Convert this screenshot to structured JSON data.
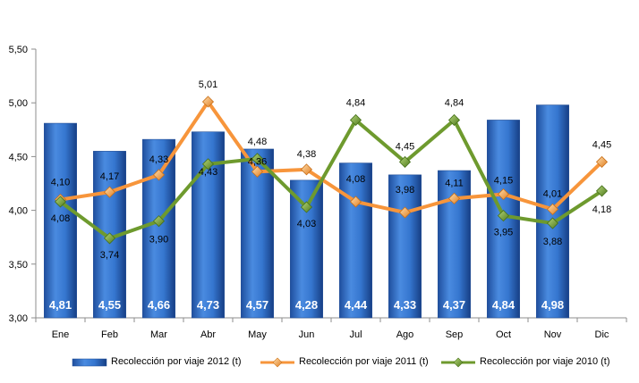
{
  "chart_data": {
    "type": "bar",
    "categories": [
      "Ene",
      "Feb",
      "Mar",
      "Abr",
      "May",
      "Jun",
      "Jul",
      "Ago",
      "Sep",
      "Oct",
      "Nov",
      "Dic"
    ],
    "ylim": [
      3.0,
      5.5
    ],
    "yticks": [
      "3,00",
      "3,50",
      "4,00",
      "4,50",
      "5,00",
      "5,50"
    ],
    "grid": false,
    "legend_position": "bottom",
    "series": [
      {
        "name": "Recolección por viaje 2012 (t)",
        "kind": "bar",
        "color": "#2f6fc9",
        "values": [
          4.81,
          4.55,
          4.66,
          4.73,
          4.57,
          4.28,
          4.44,
          4.33,
          4.37,
          4.84,
          4.98,
          null
        ],
        "labels": [
          "4,81",
          "4,55",
          "4,66",
          "4,73",
          "4,57",
          "4,28",
          "4,44",
          "4,33",
          "4,37",
          "4,84",
          "4,98",
          ""
        ]
      },
      {
        "name": "Recolección por viaje 2011 (t)",
        "kind": "line",
        "color": "#f7953b",
        "values": [
          4.1,
          4.17,
          4.33,
          5.01,
          4.36,
          4.38,
          4.08,
          3.98,
          4.11,
          4.15,
          4.01,
          4.45
        ],
        "labels": [
          "4,10",
          "4,17",
          "4,33",
          "5,01",
          "4,36",
          "4,38",
          "4,08",
          "3,98",
          "4,11",
          "4,15",
          "4,01",
          "4,45"
        ]
      },
      {
        "name": "Recolección por viaje 2010 (t)",
        "kind": "line",
        "color": "#6e9a2e",
        "values": [
          4.08,
          3.74,
          3.9,
          4.43,
          4.48,
          4.03,
          4.84,
          4.45,
          4.84,
          3.95,
          3.88,
          4.18
        ],
        "labels": [
          "4,08",
          "3,74",
          "3,90",
          "4,43",
          "4,48",
          "4,03",
          "4,84",
          "4,45",
          "4,84",
          "3,95",
          "3,88",
          "4,18"
        ]
      }
    ]
  }
}
